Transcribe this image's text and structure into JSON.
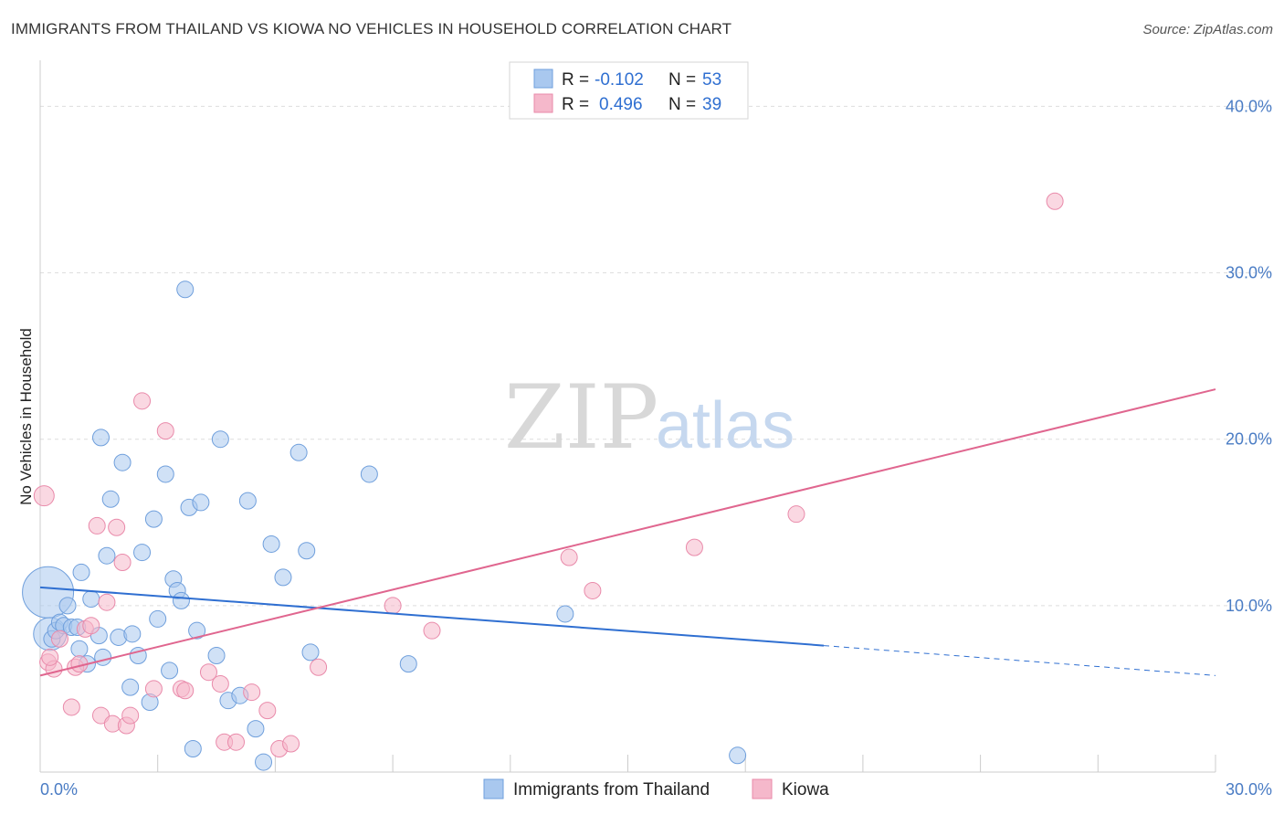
{
  "title": "IMMIGRANTS FROM THAILAND VS KIOWA NO VEHICLES IN HOUSEHOLD CORRELATION CHART",
  "source": "Source: ZipAtlas.com",
  "watermark": {
    "part1": "ZIP",
    "part2": "atlas"
  },
  "colors": {
    "blue_fill": "#a9c8ef",
    "blue_stroke": "#6f9fdc",
    "blue_line": "#2f6fd1",
    "pink_fill": "#f5b8cb",
    "pink_stroke": "#e98aaa",
    "pink_line": "#e0668f",
    "grid": "#dddddd",
    "tick_text": "#4a7cc4"
  },
  "legend_stats": {
    "row1": {
      "r_label": "R =",
      "r_value": "-0.102",
      "n_label": "N =",
      "n_value": "53"
    },
    "row2": {
      "r_label": "R =",
      "r_value": "0.496",
      "n_label": "N =",
      "n_value": "39"
    }
  },
  "bottom_legend": {
    "series1": "Immigrants from Thailand",
    "series2": "Kiowa"
  },
  "chart_data": {
    "type": "scatter",
    "title": "IMMIGRANTS FROM THAILAND VS KIOWA NO VEHICLES IN HOUSEHOLD CORRELATION CHART",
    "xlabel": "",
    "ylabel": "No Vehicles in Household",
    "xlim": [
      0,
      30
    ],
    "ylim": [
      0,
      42
    ],
    "x_tick_labels": [
      {
        "value": 0,
        "label": "0.0%"
      },
      {
        "value": 30,
        "label": "30.0%"
      }
    ],
    "y_tick_labels": [
      {
        "value": 10,
        "label": "10.0%"
      },
      {
        "value": 20,
        "label": "20.0%"
      },
      {
        "value": 30,
        "label": "30.0%"
      },
      {
        "value": 40,
        "label": "40.0%"
      }
    ],
    "grid": true,
    "legend_position": "top-center",
    "series": [
      {
        "name": "Immigrants from Thailand",
        "color": "#a9c8ef",
        "trend": {
          "x0": 0,
          "y0": 11.1,
          "x1": 20.0,
          "y1": 7.6,
          "dashed_to_x": 30,
          "dashed_to_y": 5.8
        },
        "points": [
          [
            0.2,
            10.8,
            28
          ],
          [
            0.25,
            8.3,
            18
          ],
          [
            0.3,
            8.0,
            9
          ],
          [
            0.4,
            8.5,
            9
          ],
          [
            0.5,
            9.0,
            9
          ],
          [
            0.6,
            8.8,
            9
          ],
          [
            0.7,
            10.0,
            9
          ],
          [
            0.8,
            8.7,
            9
          ],
          [
            1.0,
            7.4,
            9
          ],
          [
            1.2,
            6.5,
            9
          ],
          [
            1.3,
            10.4,
            9
          ],
          [
            1.5,
            8.2,
            9
          ],
          [
            1.6,
            6.9,
            9
          ],
          [
            1.7,
            13.0,
            9
          ],
          [
            1.8,
            16.4,
            9
          ],
          [
            2.0,
            8.1,
            9
          ],
          [
            2.1,
            18.6,
            9
          ],
          [
            2.3,
            5.1,
            9
          ],
          [
            2.5,
            7.0,
            9
          ],
          [
            2.6,
            13.2,
            9
          ],
          [
            2.8,
            4.2,
            9
          ],
          [
            2.9,
            15.2,
            9
          ],
          [
            3.0,
            9.2,
            9
          ],
          [
            3.2,
            17.9,
            9
          ],
          [
            3.3,
            6.1,
            9
          ],
          [
            3.4,
            11.6,
            9
          ],
          [
            3.5,
            10.9,
            9
          ],
          [
            3.6,
            10.3,
            9
          ],
          [
            3.7,
            29.0,
            9
          ],
          [
            3.8,
            15.9,
            9
          ],
          [
            3.9,
            1.4,
            9
          ],
          [
            4.0,
            8.5,
            9
          ],
          [
            4.1,
            16.2,
            9
          ],
          [
            4.5,
            7.0,
            9
          ],
          [
            4.6,
            20.0,
            9
          ],
          [
            4.8,
            4.3,
            9
          ],
          [
            5.1,
            4.6,
            9
          ],
          [
            5.3,
            16.3,
            9
          ],
          [
            5.5,
            2.6,
            9
          ],
          [
            5.7,
            0.6,
            9
          ],
          [
            5.9,
            13.7,
            9
          ],
          [
            6.2,
            11.7,
            9
          ],
          [
            6.6,
            19.2,
            9
          ],
          [
            6.8,
            13.3,
            9
          ],
          [
            6.9,
            7.2,
            9
          ],
          [
            8.4,
            17.9,
            9
          ],
          [
            9.4,
            6.5,
            9
          ],
          [
            13.4,
            9.5,
            9
          ],
          [
            17.8,
            1.0,
            9
          ],
          [
            1.05,
            12.0,
            9
          ],
          [
            1.55,
            20.1,
            9
          ],
          [
            2.35,
            8.3,
            9
          ],
          [
            0.95,
            8.7,
            9
          ]
        ]
      },
      {
        "name": "Kiowa",
        "color": "#f5b8cb",
        "trend": {
          "x0": 0,
          "y0": 5.8,
          "x1": 30,
          "y1": 23.0
        },
        "points": [
          [
            0.1,
            16.6,
            11
          ],
          [
            0.2,
            6.6,
            9
          ],
          [
            0.35,
            6.2,
            9
          ],
          [
            0.5,
            8.0,
            9
          ],
          [
            0.8,
            3.9,
            9
          ],
          [
            0.9,
            6.3,
            9
          ],
          [
            1.0,
            6.5,
            9
          ],
          [
            1.15,
            8.6,
            9
          ],
          [
            1.3,
            8.8,
            9
          ],
          [
            1.45,
            14.8,
            9
          ],
          [
            1.55,
            3.4,
            9
          ],
          [
            1.7,
            10.2,
            9
          ],
          [
            1.85,
            2.9,
            9
          ],
          [
            1.95,
            14.7,
            9
          ],
          [
            2.1,
            12.6,
            9
          ],
          [
            2.2,
            2.8,
            9
          ],
          [
            2.3,
            3.4,
            9
          ],
          [
            2.6,
            22.3,
            9
          ],
          [
            2.9,
            5.0,
            9
          ],
          [
            3.2,
            20.5,
            9
          ],
          [
            3.6,
            5.0,
            9
          ],
          [
            3.7,
            4.9,
            9
          ],
          [
            4.3,
            6.0,
            9
          ],
          [
            4.6,
            5.3,
            9
          ],
          [
            4.7,
            1.8,
            9
          ],
          [
            5.0,
            1.8,
            9
          ],
          [
            5.4,
            4.8,
            9
          ],
          [
            5.8,
            3.7,
            9
          ],
          [
            6.1,
            1.4,
            9
          ],
          [
            6.4,
            1.7,
            9
          ],
          [
            7.1,
            6.3,
            9
          ],
          [
            9.0,
            10.0,
            9
          ],
          [
            10.0,
            8.5,
            9
          ],
          [
            13.5,
            12.9,
            9
          ],
          [
            14.1,
            10.9,
            9
          ],
          [
            16.7,
            13.5,
            9
          ],
          [
            19.3,
            15.5,
            9
          ],
          [
            25.9,
            34.3,
            9
          ],
          [
            0.25,
            6.9,
            9
          ]
        ]
      }
    ]
  }
}
